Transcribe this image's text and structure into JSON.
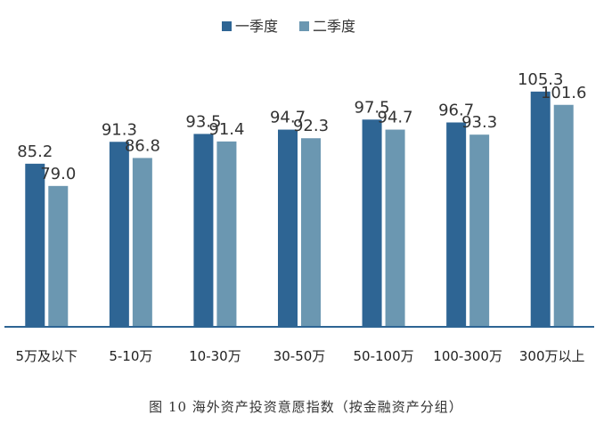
{
  "caption": "图 10 海外资产投资意愿指数（按金融资产分组）",
  "colors": {
    "series1": "#2e6594",
    "series2": "#6b97b1",
    "axis": "#2e6594"
  },
  "chart_data": {
    "type": "bar",
    "categories": [
      "5万及以下",
      "5-10万",
      "10-30万",
      "30-50万",
      "50-100万",
      "100-300万",
      "300万以上"
    ],
    "series": [
      {
        "name": "一季度",
        "values": [
          85.2,
          91.3,
          93.5,
          94.7,
          97.5,
          96.7,
          105.3
        ],
        "labels": [
          "85.2",
          "91.3",
          "93.5",
          "94.7",
          "97.5",
          "96.7",
          "105.3"
        ]
      },
      {
        "name": "二季度",
        "values": [
          79.0,
          86.8,
          91.4,
          92.3,
          94.7,
          93.3,
          101.6
        ],
        "labels": [
          "79.0",
          "86.8",
          "91.4",
          "92.3",
          "94.7",
          "93.3",
          "101.6"
        ]
      }
    ],
    "title": "",
    "xlabel": "",
    "ylabel": "",
    "ylim": [
      40,
      110
    ],
    "grid": false,
    "legend": "top-center",
    "data_labels": true
  }
}
